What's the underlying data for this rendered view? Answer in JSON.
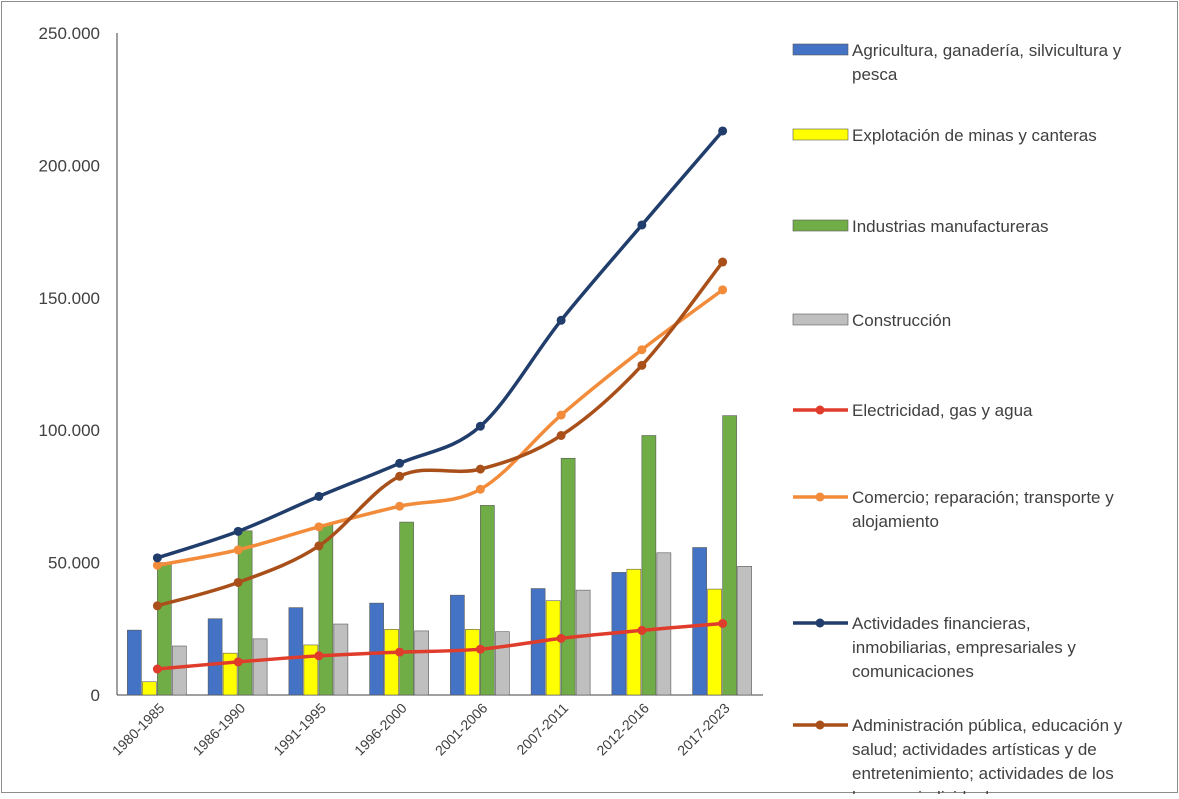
{
  "chart_data": {
    "type": "bar",
    "categories": [
      "1980-1985",
      "1986-1990",
      "1991-1995",
      "1996-2000",
      "2001-2006",
      "2007-2011",
      "2012-2016",
      "2017-2023"
    ],
    "ylim": [
      0,
      250000
    ],
    "yticks": [
      0,
      50000,
      100000,
      150000,
      200000,
      250000
    ],
    "ytick_labels": [
      "0",
      "50.000",
      "100.000",
      "150.000",
      "200.000",
      "250.000"
    ],
    "grid": false,
    "legend_position": "right",
    "series": [
      {
        "name": "Agricultura, ganadería, silvicultura y pesca",
        "type": "bar",
        "color": "#4472c4",
        "values": [
          24500,
          28800,
          33000,
          34700,
          37700,
          40200,
          46300,
          55700
        ]
      },
      {
        "name": "Explotación de minas y canteras",
        "type": "bar",
        "color": "#ffff00",
        "values": [
          5000,
          15800,
          18900,
          24800,
          24800,
          35600,
          47500,
          40000
        ]
      },
      {
        "name": "Industrias manufactureras",
        "type": "bar",
        "color": "#70ad47",
        "values": [
          50000,
          62000,
          64500,
          65300,
          71600,
          89400,
          98000,
          105500
        ]
      },
      {
        "name": "Construcción",
        "type": "bar",
        "color": "#bfbfbf",
        "values": [
          18500,
          21200,
          26800,
          24200,
          23900,
          39600,
          53700,
          48600
        ]
      },
      {
        "name": "Electricidad, gas y agua",
        "type": "line",
        "color": "#e03c2c",
        "values": [
          9800,
          12500,
          14800,
          16200,
          17300,
          21400,
          24400,
          27000
        ]
      },
      {
        "name": "Comercio; reparación; transporte y alojamiento",
        "type": "line",
        "color": "#f28c3b",
        "values": [
          49000,
          54800,
          63500,
          71300,
          77700,
          105700,
          130400,
          153000
        ]
      },
      {
        "name": "Actividades financieras, inmobiliarias, empresariales y comunicaciones",
        "type": "line",
        "color": "#203d6b",
        "values": [
          51800,
          61800,
          75000,
          87500,
          101500,
          141500,
          177500,
          213000
        ]
      },
      {
        "name": "Administración pública, educación y salud; actividades artísticas y de entretenimiento; actividades de los hogares individuales",
        "type": "line",
        "color": "#a9501a",
        "values": [
          33700,
          42500,
          56300,
          82600,
          85300,
          98000,
          124500,
          163500
        ]
      }
    ]
  },
  "legend": {
    "items": [
      {
        "lines": [
          "Agricultura, ganadería, silvicultura y",
          "pesca"
        ]
      },
      {
        "lines": [
          "Explotación de minas y canteras"
        ]
      },
      {
        "lines": [
          "Industrias manufactureras"
        ]
      },
      {
        "lines": [
          "Construcción"
        ]
      },
      {
        "lines": [
          "Electricidad, gas y agua"
        ]
      },
      {
        "lines": [
          "Comercio; reparación; transporte y",
          "alojamiento"
        ]
      },
      {
        "lines": [
          "Actividades financieras,",
          "inmobiliarias, empresariales y",
          "comunicaciones"
        ]
      },
      {
        "lines": [
          "Administración pública, educación y",
          "salud; actividades artísticas y de",
          "entretenimiento; actividades de los",
          "hogares individuales"
        ]
      }
    ]
  }
}
